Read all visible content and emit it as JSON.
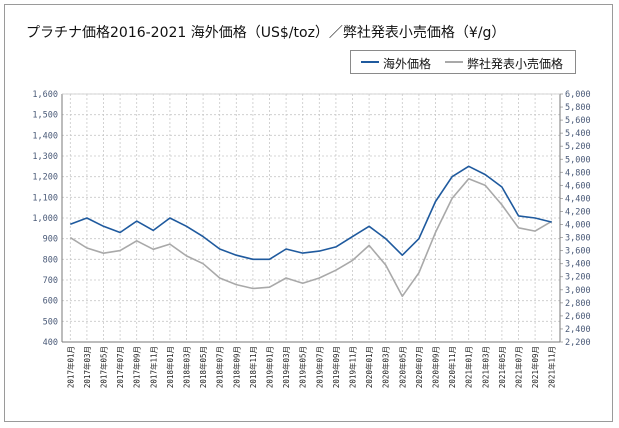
{
  "title": "プラチナ価格2016-2021 海外価格（US$/toz）／弊社発表小売価格（¥/g）",
  "legend": {
    "series1": "海外価格",
    "series2": "弊社発表小売価格"
  },
  "chart_data": {
    "type": "line",
    "title": "プラチナ価格2016-2021 海外価格（US$/toz）／弊社発表小売価格（¥/g）",
    "legend_placement": "top-right",
    "grid": true,
    "y_left": {
      "min": 400,
      "max": 1600,
      "step": 100,
      "ticks": [
        "400",
        "500",
        "600",
        "700",
        "800",
        "900",
        "1,000",
        "1,100",
        "1,200",
        "1,300",
        "1,400",
        "1,500",
        "1,600"
      ]
    },
    "y_right": {
      "min": 2200,
      "max": 6000,
      "step": 200,
      "ticks": [
        "2,200",
        "2,400",
        "2,600",
        "2,800",
        "3,000",
        "3,200",
        "3,400",
        "3,600",
        "3,800",
        "4,000",
        "4,200",
        "4,400",
        "4,600",
        "4,800",
        "5,000",
        "5,200",
        "5,400",
        "5,600",
        "5,800",
        "6,000"
      ]
    },
    "categories": [
      "2017年01月",
      "2017年03月",
      "2017年05月",
      "2017年07月",
      "2017年09月",
      "2017年11月",
      "2018年01月",
      "2018年03月",
      "2018年05月",
      "2018年07月",
      "2018年09月",
      "2018年11月",
      "2019年01月",
      "2019年03月",
      "2019年05月",
      "2019年07月",
      "2019年09月",
      "2019年11月",
      "2020年01月",
      "2020年03月",
      "2020年05月",
      "2020年07月",
      "2020年09月",
      "2020年11月",
      "2021年01月",
      "2021年03月",
      "2021年05月",
      "2021年07月",
      "2021年09月",
      "2021年11月"
    ],
    "series": [
      {
        "name": "海外価格",
        "axis": "left",
        "color": "#1f5a9e",
        "values": [
          970,
          1000,
          960,
          930,
          985,
          940,
          1000,
          960,
          910,
          850,
          820,
          800,
          800,
          850,
          830,
          840,
          860,
          910,
          960,
          900,
          820,
          900,
          1080,
          1200,
          1250,
          1210,
          1150,
          1010,
          1000,
          980
        ]
      },
      {
        "name": "弊社発表小売価格",
        "axis": "right",
        "color": "#a9a9a9",
        "values": [
          3800,
          3640,
          3560,
          3600,
          3750,
          3620,
          3700,
          3520,
          3400,
          3180,
          3080,
          3020,
          3040,
          3180,
          3100,
          3180,
          3300,
          3450,
          3680,
          3380,
          2900,
          3260,
          3880,
          4400,
          4700,
          4600,
          4300,
          3950,
          3900,
          4050
        ]
      }
    ]
  }
}
